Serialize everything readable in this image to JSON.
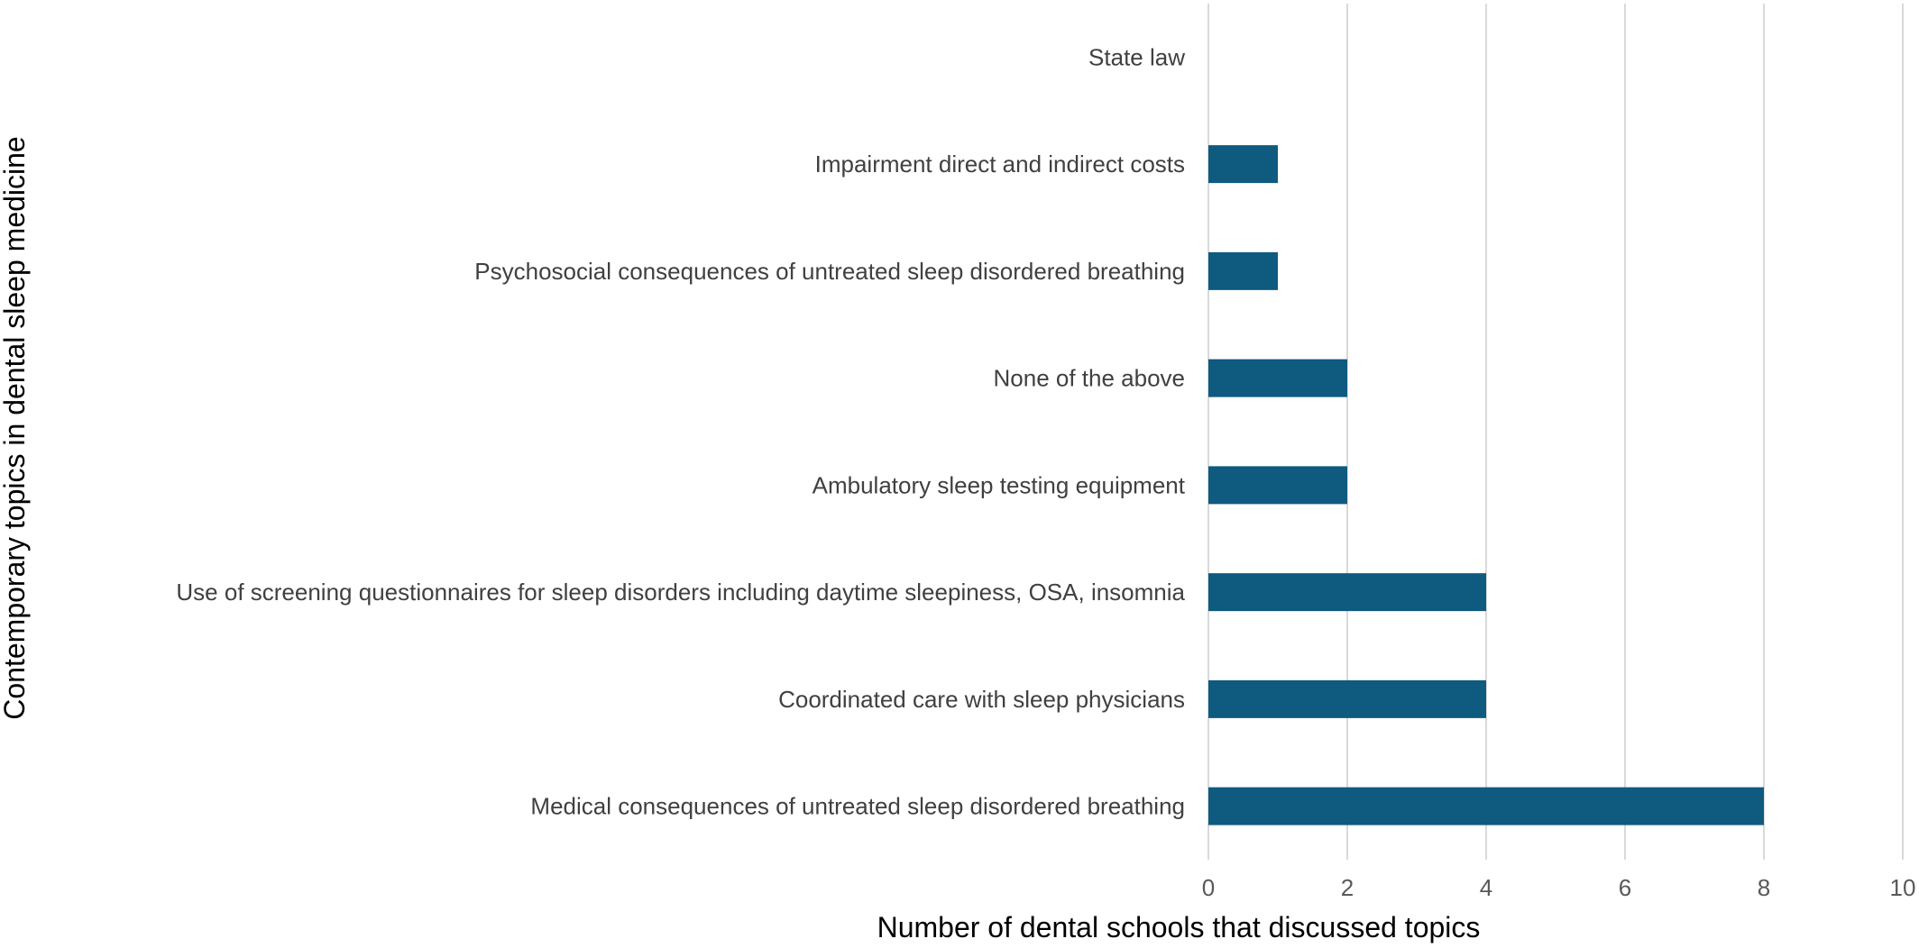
{
  "chart_data": {
    "type": "bar",
    "orientation": "horizontal",
    "categories": [
      "State law",
      "Impairment direct and indirect costs",
      "Psychosocial consequences of untreated sleep disordered breathing",
      "None of the above",
      "Ambulatory sleep testing equipment",
      "Use of screening questionnaires for sleep disorders including daytime sleepiness, OSA, insomnia",
      "Coordinated care with sleep physicians",
      "Medical consequences of untreated sleep disordered breathing"
    ],
    "values": [
      0,
      1,
      1,
      2,
      2,
      4,
      4,
      8
    ],
    "xlabel": "Number of dental schools that discussed topics",
    "ylabel": "Contemporary topics in dental sleep medicine",
    "xlim": [
      0,
      10
    ],
    "xticks": [
      0,
      2,
      4,
      6,
      8,
      10
    ],
    "grid": "vertical",
    "bar_color": "#0f5a7f",
    "grid_color": "#d9d9d9"
  }
}
